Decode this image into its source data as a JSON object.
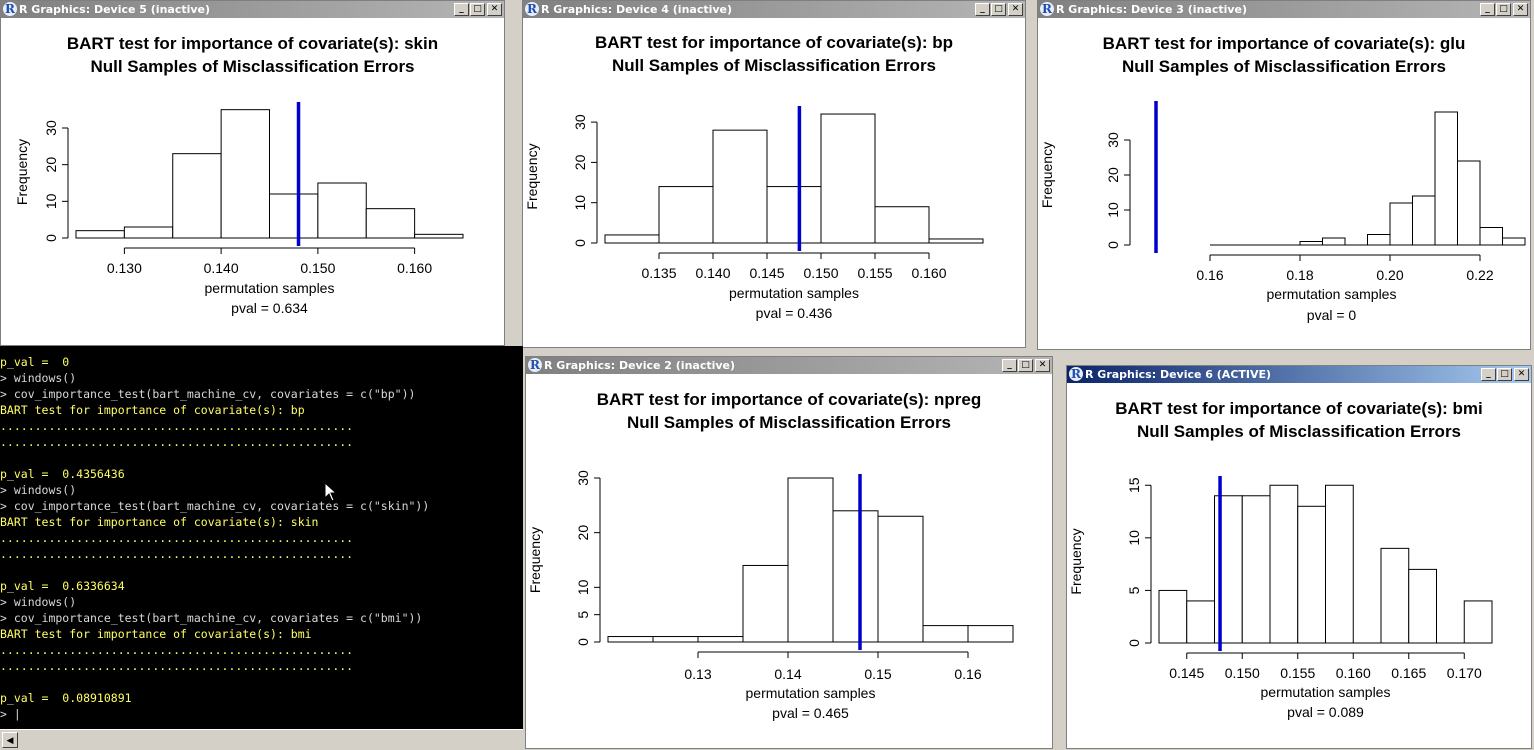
{
  "windows": [
    {
      "id": "dev5",
      "title": "R Graphics: Device 5 (inactive)",
      "active": false,
      "title_line1": "BART test for importance of covariate(s): skin",
      "title_line2": "Null Samples of Misclassification Errors",
      "xlabel": "permutation samples",
      "ylabel": "Frequency",
      "pval_label": "pval =  0.634"
    },
    {
      "id": "dev4",
      "title": "R Graphics: Device 4 (inactive)",
      "active": false,
      "title_line1": "BART test for importance of covariate(s): bp",
      "title_line2": "Null Samples of Misclassification Errors",
      "xlabel": "permutation samples",
      "ylabel": "Frequency",
      "pval_label": "pval =  0.436"
    },
    {
      "id": "dev3",
      "title": "R Graphics: Device 3 (inactive)",
      "active": false,
      "title_line1": "BART test for importance of covariate(s): glu",
      "title_line2": "Null Samples of Misclassification Errors",
      "xlabel": "permutation samples",
      "ylabel": "Frequency",
      "pval_label": "pval =  0"
    },
    {
      "id": "dev2",
      "title": "R Graphics: Device 2 (inactive)",
      "active": false,
      "title_line1": "BART test for importance of covariate(s): npreg",
      "title_line2": "Null Samples of Misclassification Errors",
      "xlabel": "permutation samples",
      "ylabel": "Frequency",
      "pval_label": "pval =  0.465"
    },
    {
      "id": "dev6",
      "title": "R Graphics: Device 6 (ACTIVE)",
      "active": true,
      "title_line1": "BART test for importance of covariate(s): bmi",
      "title_line2": "Null Samples of Misclassification Errors",
      "xlabel": "permutation samples",
      "ylabel": "Frequency",
      "pval_label": "pval =  0.089"
    }
  ],
  "chart_data": [
    {
      "type": "bar",
      "title": "BART test for importance of covariate(s): skin\nNull Samples of Misclassification Errors",
      "xlabel": "permutation samples",
      "ylabel": "Frequency",
      "bins": [
        [
          0.125,
          0.13,
          2
        ],
        [
          0.13,
          0.135,
          3
        ],
        [
          0.135,
          0.14,
          23
        ],
        [
          0.14,
          0.145,
          35
        ],
        [
          0.145,
          0.15,
          12
        ],
        [
          0.15,
          0.155,
          15
        ],
        [
          0.155,
          0.16,
          8
        ],
        [
          0.16,
          0.165,
          1
        ]
      ],
      "observed_line": 0.148,
      "xticks": [
        0.13,
        0.14,
        0.15,
        0.16
      ],
      "xtick_labels": [
        "0.130",
        "0.140",
        "0.150",
        "0.160"
      ],
      "yticks": [
        0,
        10,
        20,
        30
      ],
      "xlim": [
        0.125,
        0.165
      ],
      "ylim": [
        0,
        36
      ],
      "line_color": "#0000cc"
    },
    {
      "type": "bar",
      "title": "BART test for importance of covariate(s): bp\nNull Samples of Misclassification Errors",
      "xlabel": "permutation samples",
      "ylabel": "Frequency",
      "bins": [
        [
          0.13,
          0.135,
          2
        ],
        [
          0.135,
          0.14,
          14
        ],
        [
          0.14,
          0.145,
          28
        ],
        [
          0.145,
          0.15,
          14
        ],
        [
          0.15,
          0.155,
          32
        ],
        [
          0.155,
          0.16,
          9
        ],
        [
          0.16,
          0.165,
          1
        ]
      ],
      "observed_line": 0.148,
      "xticks": [
        0.135,
        0.14,
        0.145,
        0.15,
        0.155,
        0.16
      ],
      "xtick_labels": [
        "0.135",
        "0.140",
        "0.145",
        "0.150",
        "0.155",
        "0.160"
      ],
      "yticks": [
        0,
        10,
        20,
        30
      ],
      "xlim": [
        0.13,
        0.165
      ],
      "ylim": [
        0,
        33
      ],
      "line_color": "#0000cc"
    },
    {
      "type": "bar",
      "title": "BART test for importance of covariate(s): glu\nNull Samples of Misclassification Errors",
      "xlabel": "permutation samples",
      "ylabel": "Frequency",
      "bins": [
        [
          0.16,
          0.18,
          0
        ],
        [
          0.18,
          0.185,
          1
        ],
        [
          0.185,
          0.19,
          2
        ],
        [
          0.19,
          0.195,
          0
        ],
        [
          0.195,
          0.2,
          3
        ],
        [
          0.2,
          0.205,
          12
        ],
        [
          0.205,
          0.21,
          14
        ],
        [
          0.21,
          0.215,
          38
        ],
        [
          0.215,
          0.22,
          24
        ],
        [
          0.22,
          0.225,
          5
        ],
        [
          0.225,
          0.23,
          2
        ]
      ],
      "observed_line": 0.148,
      "xticks": [
        0.16,
        0.18,
        0.2,
        0.22
      ],
      "xtick_labels": [
        "0.16",
        "0.18",
        "0.20",
        "0.22"
      ],
      "yticks": [
        0,
        10,
        20,
        30
      ],
      "xlim": [
        0.144,
        0.23
      ],
      "ylim": [
        0,
        40
      ],
      "line_color": "#0000cc"
    },
    {
      "type": "bar",
      "title": "BART test for importance of covariate(s): npreg\nNull Samples of Misclassification Errors",
      "xlabel": "permutation samples",
      "ylabel": "Frequency",
      "bins": [
        [
          0.12,
          0.125,
          1
        ],
        [
          0.125,
          0.13,
          1
        ],
        [
          0.13,
          0.135,
          1
        ],
        [
          0.135,
          0.14,
          14
        ],
        [
          0.14,
          0.145,
          30
        ],
        [
          0.145,
          0.15,
          24
        ],
        [
          0.15,
          0.155,
          23
        ],
        [
          0.155,
          0.16,
          3
        ],
        [
          0.16,
          0.165,
          3
        ]
      ],
      "observed_line": 0.148,
      "xticks": [
        0.13,
        0.14,
        0.15,
        0.16
      ],
      "xtick_labels": [
        "0.13",
        "0.14",
        "0.15",
        "0.16"
      ],
      "yticks": [
        0,
        5,
        10,
        20,
        30
      ],
      "xlim": [
        0.12,
        0.165
      ],
      "ylim": [
        0,
        30
      ],
      "line_color": "#0000cc"
    },
    {
      "type": "bar",
      "title": "BART test for importance of covariate(s): bmi\nNull Samples of Misclassification Errors",
      "xlabel": "permutation samples",
      "ylabel": "Frequency",
      "bins": [
        [
          0.1425,
          0.145,
          5
        ],
        [
          0.145,
          0.1475,
          4
        ],
        [
          0.1475,
          0.15,
          14
        ],
        [
          0.15,
          0.1525,
          14
        ],
        [
          0.1525,
          0.155,
          15
        ],
        [
          0.155,
          0.1575,
          13
        ],
        [
          0.1575,
          0.16,
          15
        ],
        [
          0.16,
          0.1625,
          0
        ],
        [
          0.1625,
          0.165,
          9
        ],
        [
          0.165,
          0.1675,
          7
        ],
        [
          0.1675,
          0.17,
          0
        ],
        [
          0.17,
          0.1725,
          4
        ]
      ],
      "observed_line": 0.148,
      "xticks": [
        0.145,
        0.15,
        0.155,
        0.16,
        0.165,
        0.17
      ],
      "xtick_labels": [
        "0.145",
        "0.150",
        "0.155",
        "0.160",
        "0.165",
        "0.170"
      ],
      "yticks": [
        0,
        5,
        10,
        15
      ],
      "xlim": [
        0.1425,
        0.1725
      ],
      "ylim": [
        0,
        15.5
      ],
      "line_color": "#0000cc"
    }
  ],
  "console": {
    "lines": [
      {
        "text": "p_val =  0",
        "kind": "out"
      },
      {
        "text": "> windows()",
        "kind": "in"
      },
      {
        "text": "> cov_importance_test(bart_machine_cv, covariates = c(\"bp\"))",
        "kind": "in"
      },
      {
        "text": "BART test for importance of covariate(s): bp",
        "kind": "out"
      },
      {
        "text": "...................................................",
        "kind": "out"
      },
      {
        "text": "...................................................",
        "kind": "out"
      },
      {
        "text": "",
        "kind": "out"
      },
      {
        "text": "p_val =  0.4356436",
        "kind": "out"
      },
      {
        "text": "> windows()",
        "kind": "in"
      },
      {
        "text": "> cov_importance_test(bart_machine_cv, covariates = c(\"skin\"))",
        "kind": "in"
      },
      {
        "text": "BART test for importance of covariate(s): skin",
        "kind": "out"
      },
      {
        "text": "...................................................",
        "kind": "out"
      },
      {
        "text": "...................................................",
        "kind": "out"
      },
      {
        "text": "",
        "kind": "out"
      },
      {
        "text": "p_val =  0.6336634",
        "kind": "out"
      },
      {
        "text": "> windows()",
        "kind": "in"
      },
      {
        "text": "> cov_importance_test(bart_machine_cv, covariates = c(\"bmi\"))",
        "kind": "in"
      },
      {
        "text": "BART test for importance of covariate(s): bmi",
        "kind": "out"
      },
      {
        "text": "...................................................",
        "kind": "out"
      },
      {
        "text": "...................................................",
        "kind": "out"
      },
      {
        "text": "",
        "kind": "out"
      },
      {
        "text": "p_val =  0.08910891",
        "kind": "out"
      },
      {
        "text": "> |",
        "kind": "in"
      }
    ]
  }
}
